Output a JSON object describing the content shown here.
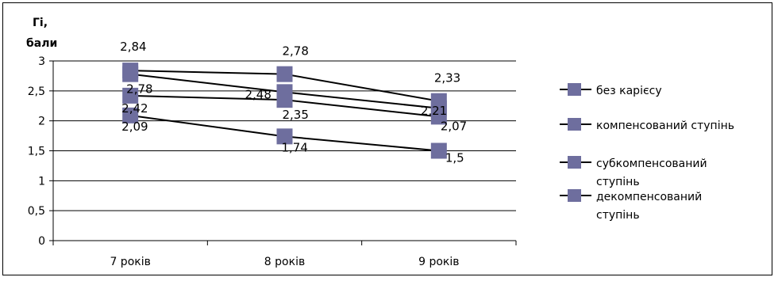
{
  "chart_data": {
    "type": "line",
    "title": "",
    "ylabel_lines": [
      "Гі,",
      "бали"
    ],
    "xlabel": "",
    "ylim": [
      0,
      3
    ],
    "yticks": [
      0,
      0.5,
      1,
      1.5,
      2,
      2.5,
      3
    ],
    "ytick_labels": [
      "0",
      "0,5",
      "1",
      "1,5",
      "2",
      "2,5",
      "3"
    ],
    "categories": [
      "7 років",
      "8 років",
      "9 років"
    ],
    "grid": true,
    "legend_position": "right",
    "series": [
      {
        "name": "без карієсу",
        "values": [
          2.84,
          2.78,
          2.33
        ],
        "labels": [
          "2,84",
          "2,78",
          "2,33"
        ]
      },
      {
        "name": "компенсований ступінь",
        "values": [
          2.78,
          2.48,
          2.21
        ],
        "labels": [
          "2,78",
          "2,48",
          "2,21"
        ]
      },
      {
        "name": "субкомпенсований ступінь",
        "values": [
          2.42,
          2.35,
          2.07
        ],
        "labels": [
          "2,42",
          "2,35",
          "2,07"
        ]
      },
      {
        "name": "декомпенсований ступінь",
        "values": [
          2.09,
          1.74,
          1.5
        ],
        "labels": [
          "2,09",
          "1,74",
          "1,5"
        ]
      }
    ],
    "legend_lines": [
      [
        "без карієсу"
      ],
      [
        "компенсований ступінь"
      ],
      [
        "субкомпенсований",
        "ступінь"
      ],
      [
        "декомпенсований",
        "ступінь"
      ]
    ],
    "line_color": "#000000",
    "marker_color": "#6e6e9e"
  }
}
